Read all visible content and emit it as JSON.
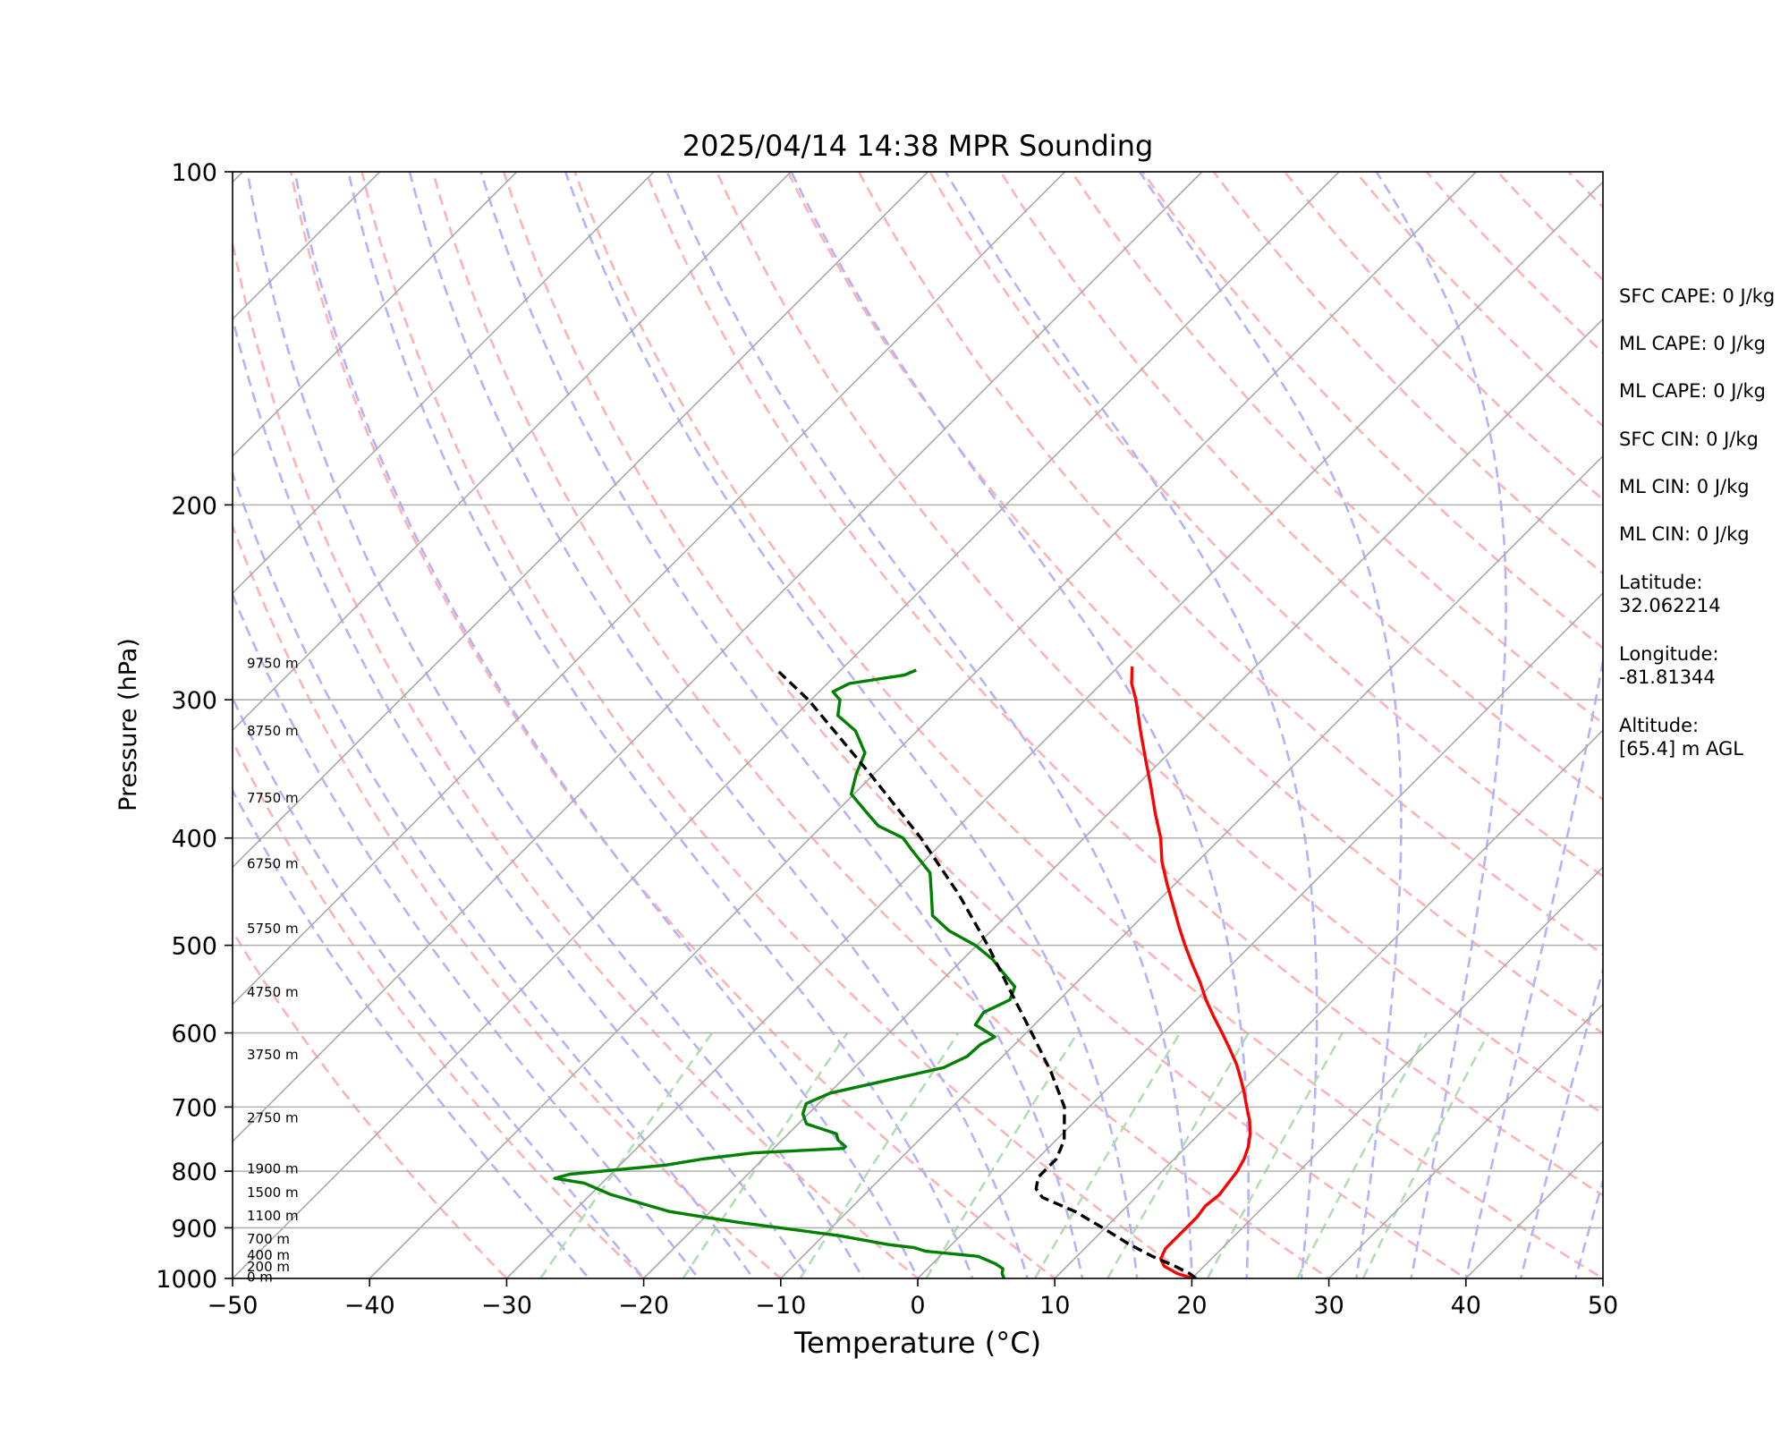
{
  "chart_data": {
    "type": "line",
    "title": "2025/04/14 14:38 MPR Sounding",
    "xlabel": "Temperature (°C)",
    "ylabel": "Pressure (hPa)",
    "xlim": [
      -50,
      50
    ],
    "ylim": [
      1000,
      100
    ],
    "y_scale": "log",
    "skew": "skew-T",
    "grid": true,
    "x_ticks": [
      -50,
      -40,
      -30,
      -20,
      -10,
      0,
      10,
      20,
      30,
      40,
      50
    ],
    "x_tick_labels": [
      "−50",
      "−40",
      "−30",
      "−20",
      "−10",
      "0",
      "10",
      "20",
      "30",
      "40",
      "50"
    ],
    "y_ticks": [
      100,
      200,
      300,
      400,
      500,
      600,
      700,
      800,
      900,
      1000
    ],
    "y_tick_labels": [
      "100",
      "200",
      "300",
      "400",
      "500",
      "600",
      "700",
      "800",
      "900",
      "1000"
    ],
    "height_labels": [
      {
        "p": 997,
        "label": "0 m"
      },
      {
        "p": 976,
        "label": "200 m"
      },
      {
        "p": 953,
        "label": "400 m"
      },
      {
        "p": 921,
        "label": "700 m"
      },
      {
        "p": 878,
        "label": "1100 m"
      },
      {
        "p": 836,
        "label": "1500 m"
      },
      {
        "p": 796,
        "label": "1900 m"
      },
      {
        "p": 716,
        "label": "2750 m"
      },
      {
        "p": 628,
        "label": "3750 m"
      },
      {
        "p": 551,
        "label": "4750 m"
      },
      {
        "p": 483,
        "label": "5750 m"
      },
      {
        "p": 422,
        "label": "6750 m"
      },
      {
        "p": 368,
        "label": "7750 m"
      },
      {
        "p": 320,
        "label": "8750 m"
      },
      {
        "p": 278,
        "label": "9750 m"
      }
    ],
    "series": [
      {
        "role": "temperature",
        "color": "#ff0000",
        "style": "solid",
        "points": [
          [
            1000,
            20.1
          ],
          [
            990,
            18.6
          ],
          [
            975,
            17.1
          ],
          [
            960,
            16.3
          ],
          [
            940,
            15.9
          ],
          [
            920,
            15.9
          ],
          [
            900,
            15.9
          ],
          [
            880,
            15.9
          ],
          [
            860,
            15.7
          ],
          [
            840,
            15.9
          ],
          [
            820,
            15.7
          ],
          [
            800,
            15.5
          ],
          [
            780,
            15.1
          ],
          [
            760,
            14.5
          ],
          [
            740,
            13.7
          ],
          [
            720,
            12.7
          ],
          [
            700,
            11.5
          ],
          [
            680,
            10.3
          ],
          [
            660,
            9.0
          ],
          [
            640,
            7.6
          ],
          [
            620,
            6.0
          ],
          [
            600,
            4.3
          ],
          [
            580,
            2.5
          ],
          [
            560,
            0.7
          ],
          [
            540,
            -1.0
          ],
          [
            520,
            -2.9
          ],
          [
            500,
            -4.8
          ],
          [
            480,
            -6.7
          ],
          [
            460,
            -8.6
          ],
          [
            440,
            -10.6
          ],
          [
            420,
            -12.6
          ],
          [
            400,
            -14.4
          ],
          [
            380,
            -16.6
          ],
          [
            360,
            -18.8
          ],
          [
            340,
            -21.2
          ],
          [
            320,
            -23.7
          ],
          [
            300,
            -26.3
          ],
          [
            290,
            -27.8
          ],
          [
            280,
            -29.0
          ]
        ]
      },
      {
        "role": "dewpoint",
        "color": "#008000",
        "style": "solid",
        "points": [
          [
            1000,
            6.3
          ],
          [
            990,
            5.8
          ],
          [
            980,
            5.5
          ],
          [
            970,
            4.6
          ],
          [
            955,
            2.8
          ],
          [
            945,
            -1.4
          ],
          [
            938,
            -2.5
          ],
          [
            932,
            -4.6
          ],
          [
            915,
            -8.8
          ],
          [
            890,
            -17.1
          ],
          [
            880,
            -20.1
          ],
          [
            870,
            -23.0
          ],
          [
            840,
            -28.5
          ],
          [
            820,
            -31.3
          ],
          [
            812,
            -33.8
          ],
          [
            805,
            -33.0
          ],
          [
            790,
            -26.7
          ],
          [
            780,
            -24.4
          ],
          [
            770,
            -21.1
          ],
          [
            763,
            -14.9
          ],
          [
            760,
            -14.9
          ],
          [
            750,
            -15.9
          ],
          [
            740,
            -16.5
          ],
          [
            725,
            -19.4
          ],
          [
            710,
            -20.4
          ],
          [
            695,
            -20.9
          ],
          [
            680,
            -19.9
          ],
          [
            665,
            -17.2
          ],
          [
            645,
            -13.5
          ],
          [
            630,
            -12.6
          ],
          [
            615,
            -12.5
          ],
          [
            605,
            -12.0
          ],
          [
            590,
            -14.3
          ],
          [
            575,
            -14.6
          ],
          [
            560,
            -13.6
          ],
          [
            545,
            -14.2
          ],
          [
            530,
            -16.0
          ],
          [
            515,
            -17.8
          ],
          [
            500,
            -20.1
          ],
          [
            485,
            -23.1
          ],
          [
            470,
            -25.4
          ],
          [
            450,
            -27.0
          ],
          [
            430,
            -28.7
          ],
          [
            410,
            -31.7
          ],
          [
            400,
            -33.2
          ],
          [
            390,
            -35.9
          ],
          [
            380,
            -37.6
          ],
          [
            365,
            -40.2
          ],
          [
            350,
            -41.3
          ],
          [
            335,
            -42.2
          ],
          [
            320,
            -44.5
          ],
          [
            310,
            -46.9
          ],
          [
            300,
            -47.9
          ],
          [
            295,
            -49.0
          ],
          [
            290,
            -48.4
          ],
          [
            285,
            -45.0
          ],
          [
            282,
            -44.5
          ]
        ]
      },
      {
        "role": "parcel",
        "color": "#000000",
        "style": "dashed",
        "points": [
          [
            1000,
            20.3
          ],
          [
            990,
            19.5
          ],
          [
            975,
            17.9
          ],
          [
            955,
            15.5
          ],
          [
            930,
            12.8
          ],
          [
            900,
            9.8
          ],
          [
            870,
            6.6
          ],
          [
            845,
            3.2
          ],
          [
            830,
            2.1
          ],
          [
            810,
            1.4
          ],
          [
            780,
            1.4
          ],
          [
            750,
            0.6
          ],
          [
            700,
            -1.8
          ],
          [
            650,
            -5.4
          ],
          [
            600,
            -9.6
          ],
          [
            550,
            -14.2
          ],
          [
            500,
            -19.2
          ],
          [
            450,
            -25.0
          ],
          [
            400,
            -31.9
          ],
          [
            350,
            -40.3
          ],
          [
            300,
            -50.2
          ],
          [
            283,
            -54.4
          ]
        ]
      }
    ],
    "reference_lines": {
      "isotherms_color": "#a9a9a9",
      "dry_adiabats_color": "#ffb2b2",
      "moist_adiabats_color": "#b2b2ff",
      "mixing_ratio_color": "#b2ddb2",
      "mixing_ratio_g_per_kg": [
        0.4,
        1,
        2,
        4,
        7,
        10,
        16,
        24,
        32
      ]
    }
  },
  "info": {
    "sfc_cape": "SFC CAPE: 0 J/kg",
    "ml_cape_1": "ML CAPE: 0 J/kg",
    "ml_cape_2": "ML CAPE: 0 J/kg",
    "sfc_cin": "SFC CIN: 0 J/kg",
    "ml_cin_1": "ML CIN: 0 J/kg",
    "ml_cin_2": "ML CIN: 0 J/kg",
    "latitude": "Latitude:\n32.062214",
    "longitude": "Longitude:\n-81.81344",
    "altitude": "Altitude:\n[65.4] m AGL"
  }
}
